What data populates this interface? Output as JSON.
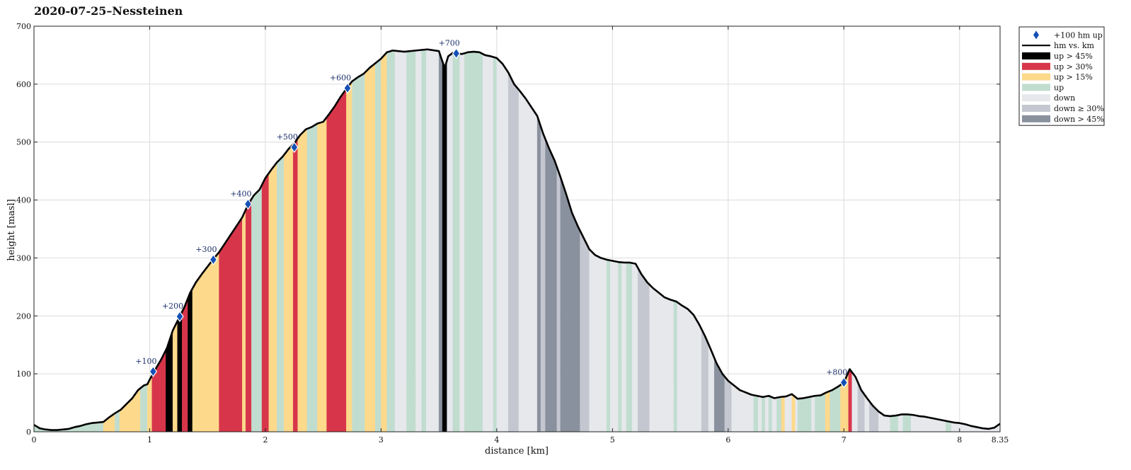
{
  "chart_data": {
    "type": "area",
    "title": "2020-07-25–Nessteinen",
    "xlabel": "distance [km]",
    "ylabel": "height [masl]",
    "xlim": [
      0,
      8.35
    ],
    "ylim": [
      0,
      700
    ],
    "grid": true,
    "legend_placement": "outside-top-right",
    "x_ticks": [
      {
        "v": 0,
        "label": "0"
      },
      {
        "v": 1,
        "label": "1"
      },
      {
        "v": 2,
        "label": "2"
      },
      {
        "v": 3,
        "label": "3"
      },
      {
        "v": 4,
        "label": "4"
      },
      {
        "v": 5,
        "label": "5"
      },
      {
        "v": 6,
        "label": "6"
      },
      {
        "v": 7,
        "label": "7"
      },
      {
        "v": 8,
        "label": "8"
      },
      {
        "v": 8.35,
        "label": "8.35"
      }
    ],
    "y_ticks": [
      {
        "v": 0,
        "label": "0"
      },
      {
        "v": 100,
        "label": "100"
      },
      {
        "v": 200,
        "label": "200"
      },
      {
        "v": 300,
        "label": "300"
      },
      {
        "v": 400,
        "label": "400"
      },
      {
        "v": 500,
        "label": "500"
      },
      {
        "v": 600,
        "label": "600"
      },
      {
        "v": 700,
        "label": "700"
      }
    ],
    "categories": [
      {
        "key": "up45",
        "label": "up > 45%",
        "color": "#000000"
      },
      {
        "key": "up30",
        "label": "up > 30%",
        "color": "#d7364a"
      },
      {
        "key": "up15",
        "label": "up > 15%",
        "color": "#fdd98b"
      },
      {
        "key": "up",
        "label": "up",
        "color": "#c1ddd0"
      },
      {
        "key": "down",
        "label": "down",
        "color": "#e6e8ec"
      },
      {
        "key": "down30",
        "label": "down ≥ 30%",
        "color": "#c4c7cf"
      },
      {
        "key": "down45",
        "label": "down > 45%",
        "color": "#8a919e"
      }
    ],
    "profile_series": {
      "name": "hm vs. km",
      "color": "#000000",
      "points": [
        [
          0,
          12
        ],
        [
          0.05,
          6
        ],
        [
          0.1,
          4
        ],
        [
          0.15,
          3
        ],
        [
          0.2,
          3
        ],
        [
          0.3,
          5
        ],
        [
          0.35,
          8
        ],
        [
          0.4,
          10
        ],
        [
          0.45,
          13
        ],
        [
          0.5,
          15
        ],
        [
          0.55,
          16
        ],
        [
          0.6,
          17
        ],
        [
          0.65,
          25
        ],
        [
          0.7,
          32
        ],
        [
          0.75,
          38
        ],
        [
          0.8,
          48
        ],
        [
          0.85,
          58
        ],
        [
          0.9,
          72
        ],
        [
          0.95,
          80
        ],
        [
          0.98,
          82
        ],
        [
          1.0,
          90
        ],
        [
          1.05,
          108
        ],
        [
          1.1,
          125
        ],
        [
          1.15,
          145
        ],
        [
          1.2,
          175
        ],
        [
          1.25,
          195
        ],
        [
          1.3,
          215
        ],
        [
          1.35,
          240
        ],
        [
          1.4,
          258
        ],
        [
          1.45,
          272
        ],
        [
          1.5,
          285
        ],
        [
          1.55,
          298
        ],
        [
          1.6,
          310
        ],
        [
          1.65,
          325
        ],
        [
          1.7,
          340
        ],
        [
          1.75,
          355
        ],
        [
          1.8,
          370
        ],
        [
          1.85,
          392
        ],
        [
          1.9,
          408
        ],
        [
          1.95,
          418
        ],
        [
          2.0,
          438
        ],
        [
          2.05,
          452
        ],
        [
          2.1,
          465
        ],
        [
          2.15,
          475
        ],
        [
          2.2,
          488
        ],
        [
          2.25,
          498
        ],
        [
          2.3,
          512
        ],
        [
          2.35,
          522
        ],
        [
          2.4,
          526
        ],
        [
          2.45,
          532
        ],
        [
          2.5,
          535
        ],
        [
          2.55,
          548
        ],
        [
          2.6,
          562
        ],
        [
          2.65,
          578
        ],
        [
          2.7,
          592
        ],
        [
          2.75,
          605
        ],
        [
          2.8,
          612
        ],
        [
          2.85,
          618
        ],
        [
          2.9,
          628
        ],
        [
          2.95,
          636
        ],
        [
          3.0,
          644
        ],
        [
          3.05,
          655
        ],
        [
          3.1,
          658
        ],
        [
          3.15,
          657
        ],
        [
          3.2,
          656
        ],
        [
          3.3,
          658
        ],
        [
          3.4,
          660
        ],
        [
          3.5,
          657
        ],
        [
          3.52,
          645
        ],
        [
          3.55,
          628
        ],
        [
          3.58,
          648
        ],
        [
          3.62,
          654
        ],
        [
          3.7,
          652
        ],
        [
          3.75,
          655
        ],
        [
          3.8,
          656
        ],
        [
          3.85,
          655
        ],
        [
          3.9,
          650
        ],
        [
          3.95,
          648
        ],
        [
          4.0,
          645
        ],
        [
          4.05,
          635
        ],
        [
          4.1,
          620
        ],
        [
          4.15,
          600
        ],
        [
          4.2,
          588
        ],
        [
          4.25,
          575
        ],
        [
          4.3,
          560
        ],
        [
          4.35,
          545
        ],
        [
          4.4,
          515
        ],
        [
          4.45,
          490
        ],
        [
          4.5,
          468
        ],
        [
          4.55,
          440
        ],
        [
          4.6,
          410
        ],
        [
          4.65,
          378
        ],
        [
          4.7,
          355
        ],
        [
          4.75,
          335
        ],
        [
          4.8,
          315
        ],
        [
          4.85,
          305
        ],
        [
          4.9,
          300
        ],
        [
          4.95,
          297
        ],
        [
          5.0,
          295
        ],
        [
          5.05,
          293
        ],
        [
          5.1,
          292
        ],
        [
          5.15,
          292
        ],
        [
          5.2,
          290
        ],
        [
          5.25,
          272
        ],
        [
          5.3,
          258
        ],
        [
          5.35,
          248
        ],
        [
          5.4,
          240
        ],
        [
          5.45,
          232
        ],
        [
          5.5,
          228
        ],
        [
          5.55,
          225
        ],
        [
          5.6,
          218
        ],
        [
          5.65,
          212
        ],
        [
          5.7,
          202
        ],
        [
          5.75,
          185
        ],
        [
          5.8,
          165
        ],
        [
          5.85,
          142
        ],
        [
          5.9,
          118
        ],
        [
          5.95,
          100
        ],
        [
          6.0,
          88
        ],
        [
          6.05,
          80
        ],
        [
          6.1,
          72
        ],
        [
          6.15,
          68
        ],
        [
          6.2,
          64
        ],
        [
          6.25,
          62
        ],
        [
          6.3,
          60
        ],
        [
          6.35,
          62
        ],
        [
          6.4,
          58
        ],
        [
          6.45,
          60
        ],
        [
          6.5,
          61
        ],
        [
          6.55,
          65
        ],
        [
          6.6,
          57
        ],
        [
          6.65,
          58
        ],
        [
          6.7,
          60
        ],
        [
          6.75,
          62
        ],
        [
          6.8,
          63
        ],
        [
          6.85,
          68
        ],
        [
          6.9,
          72
        ],
        [
          6.95,
          78
        ],
        [
          7.0,
          85
        ],
        [
          7.05,
          108
        ],
        [
          7.1,
          95
        ],
        [
          7.15,
          72
        ],
        [
          7.2,
          58
        ],
        [
          7.25,
          45
        ],
        [
          7.3,
          35
        ],
        [
          7.35,
          28
        ],
        [
          7.4,
          27
        ],
        [
          7.45,
          28
        ],
        [
          7.5,
          30
        ],
        [
          7.55,
          30
        ],
        [
          7.6,
          29
        ],
        [
          7.65,
          27
        ],
        [
          7.7,
          26
        ],
        [
          7.75,
          24
        ],
        [
          7.8,
          22
        ],
        [
          7.85,
          20
        ],
        [
          7.9,
          18
        ],
        [
          7.95,
          16
        ],
        [
          8.0,
          15
        ],
        [
          8.05,
          13
        ],
        [
          8.1,
          10
        ],
        [
          8.15,
          8
        ],
        [
          8.2,
          6
        ],
        [
          8.25,
          5
        ],
        [
          8.3,
          7
        ],
        [
          8.35,
          14
        ]
      ]
    },
    "gradient_bands": [
      {
        "x0": 0.0,
        "x1": 0.6,
        "c": "up"
      },
      {
        "x0": 0.6,
        "x1": 0.7,
        "c": "up15"
      },
      {
        "x0": 0.7,
        "x1": 0.74,
        "c": "up"
      },
      {
        "x0": 0.74,
        "x1": 0.92,
        "c": "up15"
      },
      {
        "x0": 0.92,
        "x1": 0.98,
        "c": "up"
      },
      {
        "x0": 0.98,
        "x1": 1.02,
        "c": "up15"
      },
      {
        "x0": 1.02,
        "x1": 1.14,
        "c": "up30"
      },
      {
        "x0": 1.14,
        "x1": 1.2,
        "c": "up45"
      },
      {
        "x0": 1.2,
        "x1": 1.24,
        "c": "up15"
      },
      {
        "x0": 1.24,
        "x1": 1.28,
        "c": "up45"
      },
      {
        "x0": 1.28,
        "x1": 1.33,
        "c": "up30"
      },
      {
        "x0": 1.33,
        "x1": 1.37,
        "c": "up45"
      },
      {
        "x0": 1.37,
        "x1": 1.6,
        "c": "up15"
      },
      {
        "x0": 1.6,
        "x1": 1.8,
        "c": "up30"
      },
      {
        "x0": 1.8,
        "x1": 1.83,
        "c": "up15"
      },
      {
        "x0": 1.83,
        "x1": 1.88,
        "c": "up30"
      },
      {
        "x0": 1.88,
        "x1": 1.97,
        "c": "up"
      },
      {
        "x0": 1.97,
        "x1": 2.03,
        "c": "up30"
      },
      {
        "x0": 2.03,
        "x1": 2.1,
        "c": "up15"
      },
      {
        "x0": 2.1,
        "x1": 2.16,
        "c": "up"
      },
      {
        "x0": 2.16,
        "x1": 2.24,
        "c": "up15"
      },
      {
        "x0": 2.24,
        "x1": 2.28,
        "c": "up30"
      },
      {
        "x0": 2.28,
        "x1": 2.36,
        "c": "up15"
      },
      {
        "x0": 2.36,
        "x1": 2.45,
        "c": "up"
      },
      {
        "x0": 2.45,
        "x1": 2.53,
        "c": "up15"
      },
      {
        "x0": 2.53,
        "x1": 2.7,
        "c": "up30"
      },
      {
        "x0": 2.7,
        "x1": 2.75,
        "c": "up15"
      },
      {
        "x0": 2.75,
        "x1": 2.86,
        "c": "up"
      },
      {
        "x0": 2.86,
        "x1": 2.95,
        "c": "up15"
      },
      {
        "x0": 2.95,
        "x1": 3.0,
        "c": "up"
      },
      {
        "x0": 3.0,
        "x1": 3.05,
        "c": "up15"
      },
      {
        "x0": 3.05,
        "x1": 3.12,
        "c": "up"
      },
      {
        "x0": 3.12,
        "x1": 3.22,
        "c": "down"
      },
      {
        "x0": 3.22,
        "x1": 3.3,
        "c": "up"
      },
      {
        "x0": 3.3,
        "x1": 3.35,
        "c": "down"
      },
      {
        "x0": 3.35,
        "x1": 3.39,
        "c": "up"
      },
      {
        "x0": 3.39,
        "x1": 3.5,
        "c": "down"
      },
      {
        "x0": 3.5,
        "x1": 3.53,
        "c": "down45"
      },
      {
        "x0": 3.53,
        "x1": 3.57,
        "c": "up45"
      },
      {
        "x0": 3.57,
        "x1": 3.62,
        "c": "down"
      },
      {
        "x0": 3.62,
        "x1": 3.68,
        "c": "up"
      },
      {
        "x0": 3.68,
        "x1": 3.72,
        "c": "down"
      },
      {
        "x0": 3.72,
        "x1": 3.88,
        "c": "up"
      },
      {
        "x0": 3.88,
        "x1": 3.97,
        "c": "down"
      },
      {
        "x0": 3.97,
        "x1": 4.0,
        "c": "up"
      },
      {
        "x0": 4.0,
        "x1": 4.1,
        "c": "down"
      },
      {
        "x0": 4.1,
        "x1": 4.19,
        "c": "down30"
      },
      {
        "x0": 4.19,
        "x1": 4.35,
        "c": "down"
      },
      {
        "x0": 4.35,
        "x1": 4.38,
        "c": "down45"
      },
      {
        "x0": 4.38,
        "x1": 4.42,
        "c": "down30"
      },
      {
        "x0": 4.42,
        "x1": 4.52,
        "c": "down45"
      },
      {
        "x0": 4.52,
        "x1": 4.55,
        "c": "down30"
      },
      {
        "x0": 4.55,
        "x1": 4.72,
        "c": "down45"
      },
      {
        "x0": 4.72,
        "x1": 4.8,
        "c": "down30"
      },
      {
        "x0": 4.8,
        "x1": 4.95,
        "c": "down"
      },
      {
        "x0": 4.95,
        "x1": 4.98,
        "c": "up"
      },
      {
        "x0": 4.98,
        "x1": 5.05,
        "c": "down"
      },
      {
        "x0": 5.05,
        "x1": 5.08,
        "c": "up"
      },
      {
        "x0": 5.08,
        "x1": 5.12,
        "c": "down"
      },
      {
        "x0": 5.12,
        "x1": 5.17,
        "c": "up"
      },
      {
        "x0": 5.17,
        "x1": 5.22,
        "c": "down"
      },
      {
        "x0": 5.22,
        "x1": 5.32,
        "c": "down30"
      },
      {
        "x0": 5.32,
        "x1": 5.53,
        "c": "down"
      },
      {
        "x0": 5.53,
        "x1": 5.56,
        "c": "up"
      },
      {
        "x0": 5.56,
        "x1": 5.77,
        "c": "down"
      },
      {
        "x0": 5.77,
        "x1": 5.83,
        "c": "down30"
      },
      {
        "x0": 5.83,
        "x1": 5.88,
        "c": "down"
      },
      {
        "x0": 5.88,
        "x1": 5.97,
        "c": "down45"
      },
      {
        "x0": 5.97,
        "x1": 6.03,
        "c": "down30"
      },
      {
        "x0": 6.03,
        "x1": 6.22,
        "c": "down"
      },
      {
        "x0": 6.22,
        "x1": 6.26,
        "c": "up"
      },
      {
        "x0": 6.26,
        "x1": 6.29,
        "c": "down"
      },
      {
        "x0": 6.29,
        "x1": 6.32,
        "c": "up"
      },
      {
        "x0": 6.32,
        "x1": 6.35,
        "c": "down"
      },
      {
        "x0": 6.35,
        "x1": 6.38,
        "c": "up"
      },
      {
        "x0": 6.38,
        "x1": 6.42,
        "c": "down"
      },
      {
        "x0": 6.42,
        "x1": 6.46,
        "c": "up"
      },
      {
        "x0": 6.46,
        "x1": 6.49,
        "c": "up15"
      },
      {
        "x0": 6.49,
        "x1": 6.55,
        "c": "down"
      },
      {
        "x0": 6.55,
        "x1": 6.58,
        "c": "up15"
      },
      {
        "x0": 6.58,
        "x1": 6.6,
        "c": "down"
      },
      {
        "x0": 6.6,
        "x1": 6.72,
        "c": "up"
      },
      {
        "x0": 6.72,
        "x1": 6.75,
        "c": "down"
      },
      {
        "x0": 6.75,
        "x1": 6.84,
        "c": "up"
      },
      {
        "x0": 6.84,
        "x1": 6.88,
        "c": "up15"
      },
      {
        "x0": 6.88,
        "x1": 6.97,
        "c": "up"
      },
      {
        "x0": 6.97,
        "x1": 7.04,
        "c": "up15"
      },
      {
        "x0": 7.04,
        "x1": 7.07,
        "c": "up30"
      },
      {
        "x0": 7.07,
        "x1": 7.12,
        "c": "down"
      },
      {
        "x0": 7.12,
        "x1": 7.18,
        "c": "down30"
      },
      {
        "x0": 7.18,
        "x1": 7.22,
        "c": "down"
      },
      {
        "x0": 7.22,
        "x1": 7.3,
        "c": "down30"
      },
      {
        "x0": 7.3,
        "x1": 7.4,
        "c": "down"
      },
      {
        "x0": 7.4,
        "x1": 7.47,
        "c": "up"
      },
      {
        "x0": 7.47,
        "x1": 7.51,
        "c": "down"
      },
      {
        "x0": 7.51,
        "x1": 7.58,
        "c": "up"
      },
      {
        "x0": 7.58,
        "x1": 7.88,
        "c": "down"
      },
      {
        "x0": 7.88,
        "x1": 7.93,
        "c": "up"
      },
      {
        "x0": 7.93,
        "x1": 8.35,
        "c": "down"
      }
    ],
    "milestones": {
      "name": "+100 hm up",
      "color": "#1450b4",
      "points": [
        {
          "x": 1.03,
          "y": 104,
          "label": "+100"
        },
        {
          "x": 1.26,
          "y": 199,
          "label": "+200"
        },
        {
          "x": 1.55,
          "y": 297,
          "label": "+300"
        },
        {
          "x": 1.85,
          "y": 393,
          "label": "+400"
        },
        {
          "x": 2.25,
          "y": 491,
          "label": "+500"
        },
        {
          "x": 2.71,
          "y": 593,
          "label": "+600"
        },
        {
          "x": 3.65,
          "y": 653,
          "label": "+700"
        },
        {
          "x": 7.0,
          "y": 85,
          "label": "+800"
        }
      ]
    },
    "legend": {
      "entries": [
        {
          "label": "+100 hm up",
          "kind": "marker",
          "color": "#1450b4"
        },
        {
          "label": "hm vs. km",
          "kind": "line",
          "color": "#000000"
        },
        {
          "label": "up > 45%",
          "kind": "patch",
          "color": "#000000"
        },
        {
          "label": "up > 30%",
          "kind": "patch",
          "color": "#d7364a"
        },
        {
          "label": "up > 15%",
          "kind": "patch",
          "color": "#fdd98b"
        },
        {
          "label": "up",
          "kind": "patch",
          "color": "#c1ddd0"
        },
        {
          "label": "down",
          "kind": "patch",
          "color": "#e6e8ec"
        },
        {
          "label": "down ≥ 30%",
          "kind": "patch",
          "color": "#c4c7cf"
        },
        {
          "label": "down > 45%",
          "kind": "patch",
          "color": "#8a919e"
        }
      ]
    }
  }
}
